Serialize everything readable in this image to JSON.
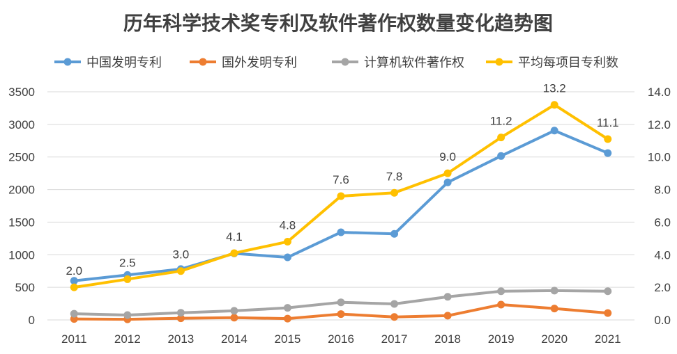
{
  "chart_data": {
    "type": "line",
    "title": "历年科学技术奖专利及软件著作权数量变化趋势图",
    "categories": [
      "2011",
      "2012",
      "2013",
      "2014",
      "2015",
      "2016",
      "2017",
      "2018",
      "2019",
      "2020",
      "2021"
    ],
    "y_left": {
      "min": 0,
      "max": 3500,
      "ticks": [
        "0",
        "500",
        "1000",
        "1500",
        "2000",
        "2500",
        "3000",
        "3500"
      ]
    },
    "y_right": {
      "min": 0,
      "max": 14,
      "ticks": [
        "0.0",
        "2.0",
        "4.0",
        "6.0",
        "8.0",
        "10.0",
        "12.0",
        "14.0"
      ]
    },
    "grid": true,
    "legend_position": "top",
    "series": [
      {
        "name": "中国发明专利",
        "axis": "left",
        "color": "#5B9BD5",
        "values": [
          600,
          690,
          780,
          1020,
          960,
          1345,
          1320,
          2110,
          2515,
          2905,
          2560
        ]
      },
      {
        "name": "国外发明专利",
        "axis": "left",
        "color": "#ED7D31",
        "values": [
          15,
          10,
          25,
          35,
          20,
          90,
          45,
          65,
          235,
          175,
          105
        ]
      },
      {
        "name": "计算机软件著作权",
        "axis": "left",
        "color": "#A5A5A5",
        "values": [
          95,
          75,
          110,
          140,
          185,
          270,
          245,
          355,
          440,
          450,
          440
        ]
      },
      {
        "name": "平均每项目专利数",
        "axis": "right",
        "color": "#FFC000",
        "values": [
          2.0,
          2.5,
          3.0,
          4.1,
          4.8,
          7.6,
          7.8,
          9.0,
          11.2,
          13.2,
          11.1
        ],
        "labels": [
          "2.0",
          "2.5",
          "3.0",
          "4.1",
          "4.8",
          "7.6",
          "7.8",
          "9.0",
          "11.2",
          "13.2",
          "11.1"
        ]
      }
    ]
  }
}
